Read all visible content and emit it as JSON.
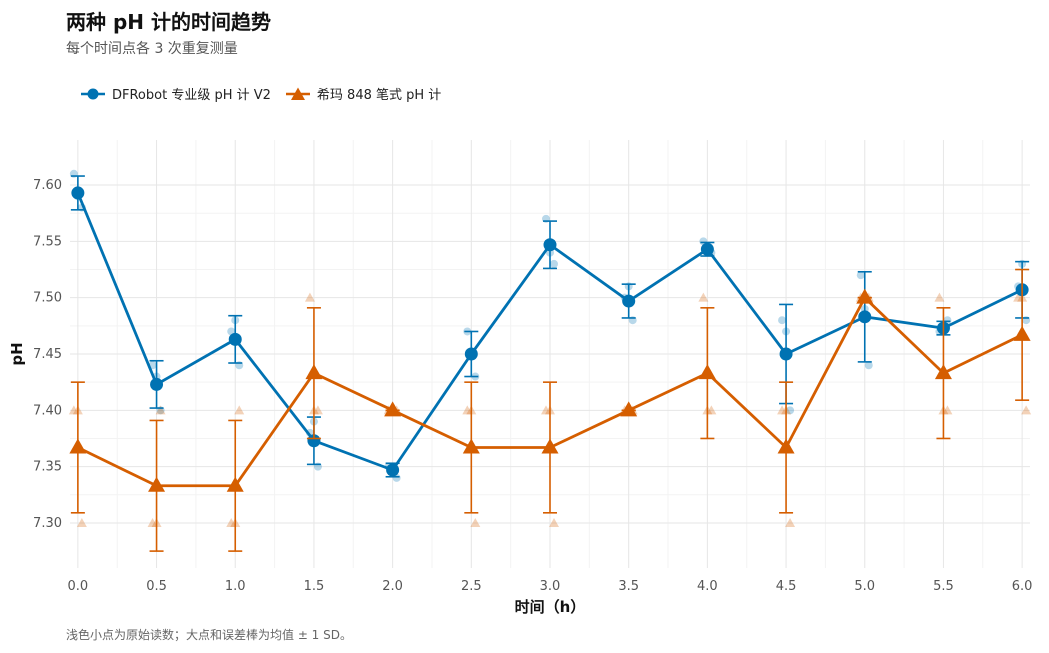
{
  "chart_data": {
    "type": "line",
    "title": "两种 pH 计的时间趋势",
    "subtitle": "每个时间点各 3 次重复测量",
    "xlabel": "时间（h）",
    "ylabel": "pH",
    "caption": "浅色小点为原始读数；大点和误差棒为均值 ± 1 SD。",
    "xlim": [
      -0.05,
      6.05
    ],
    "ylim": [
      7.26,
      7.64
    ],
    "x_ticks": [
      0.0,
      0.5,
      1.0,
      1.5,
      2.0,
      2.5,
      3.0,
      3.5,
      4.0,
      4.5,
      5.0,
      5.5,
      6.0
    ],
    "x_tick_labels": [
      "0.0",
      "0.5",
      "1.0",
      "1.5",
      "2.0",
      "2.5",
      "3.0",
      "3.5",
      "4.0",
      "4.5",
      "5.0",
      "5.5",
      "6.0"
    ],
    "y_ticks": [
      7.3,
      7.35,
      7.4,
      7.45,
      7.5,
      7.55,
      7.6
    ],
    "y_tick_labels": [
      "7.30",
      "7.35",
      "7.40",
      "7.45",
      "7.50",
      "7.55",
      "7.60"
    ],
    "grid": true,
    "legend_position": "top-left",
    "x": [
      0.0,
      0.5,
      1.0,
      1.5,
      2.0,
      2.5,
      3.0,
      3.5,
      4.0,
      4.5,
      5.0,
      5.5,
      6.0
    ],
    "series": [
      {
        "name": "DFRobot 专业级 pH 计 V2",
        "color": "#0072b2",
        "marker": "circle",
        "mean": [
          7.593,
          7.423,
          7.463,
          7.373,
          7.347,
          7.45,
          7.547,
          7.497,
          7.543,
          7.45,
          7.483,
          7.473,
          7.507
        ],
        "sd": [
          0.015,
          0.021,
          0.021,
          0.021,
          0.006,
          0.02,
          0.021,
          0.015,
          0.006,
          0.044,
          0.04,
          0.006,
          0.025
        ],
        "raw": [
          [
            7.61,
            7.59,
            7.58
          ],
          [
            7.44,
            7.43,
            7.4
          ],
          [
            7.47,
            7.48,
            7.44
          ],
          [
            7.38,
            7.39,
            7.35
          ],
          [
            7.35,
            7.35,
            7.34
          ],
          [
            7.47,
            7.45,
            7.43
          ],
          [
            7.57,
            7.54,
            7.53
          ],
          [
            7.5,
            7.51,
            7.48
          ],
          [
            7.55,
            7.54,
            7.54
          ],
          [
            7.48,
            7.47,
            7.4
          ],
          [
            7.52,
            7.49,
            7.44
          ],
          [
            7.47,
            7.47,
            7.48
          ],
          [
            7.51,
            7.53,
            7.48
          ]
        ]
      },
      {
        "name": "希玛 848 笔式 pH 计",
        "color": "#d55e00",
        "marker": "triangle",
        "mean": [
          7.367,
          7.333,
          7.333,
          7.433,
          7.4,
          7.367,
          7.367,
          7.4,
          7.433,
          7.367,
          7.5,
          7.433,
          7.467
        ],
        "sd": [
          0.058,
          0.058,
          0.058,
          0.058,
          0.0,
          0.058,
          0.058,
          0.0,
          0.058,
          0.058,
          0.0,
          0.058,
          0.058
        ],
        "raw": [
          [
            7.4,
            7.4,
            7.3
          ],
          [
            7.3,
            7.3,
            7.4
          ],
          [
            7.3,
            7.3,
            7.4
          ],
          [
            7.5,
            7.4,
            7.4
          ],
          [
            7.4,
            7.4,
            7.4
          ],
          [
            7.4,
            7.4,
            7.3
          ],
          [
            7.4,
            7.4,
            7.3
          ],
          [
            7.4,
            7.4,
            7.4
          ],
          [
            7.5,
            7.4,
            7.4
          ],
          [
            7.4,
            7.4,
            7.3
          ],
          [
            7.5,
            7.5,
            7.5
          ],
          [
            7.5,
            7.4,
            7.4
          ],
          [
            7.5,
            7.5,
            7.4
          ]
        ]
      }
    ]
  }
}
